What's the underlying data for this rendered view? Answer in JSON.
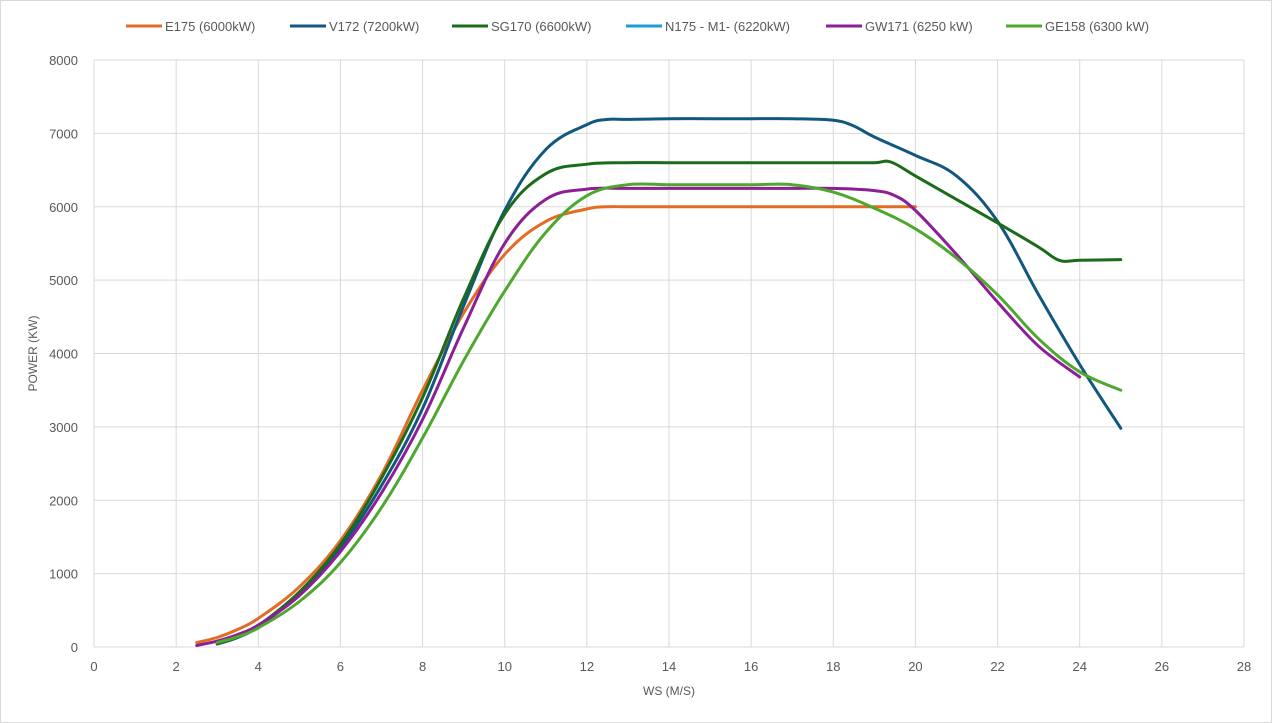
{
  "chart_data": {
    "type": "line",
    "title": "",
    "xlabel": "WS (M/S)",
    "ylabel": "POWER (KW)",
    "xlim": [
      0,
      28
    ],
    "ylim": [
      0,
      8000
    ],
    "xticks": [
      0,
      2,
      4,
      6,
      8,
      10,
      12,
      14,
      16,
      18,
      20,
      22,
      24,
      26,
      28
    ],
    "yticks": [
      0,
      1000,
      2000,
      3000,
      4000,
      5000,
      6000,
      7000,
      8000
    ],
    "grid": true,
    "legend_position": "top",
    "series": [
      {
        "name": "E175 (6000kW)",
        "color": "#e36c24",
        "points": [
          [
            2.5,
            60
          ],
          [
            3,
            130
          ],
          [
            3.5,
            240
          ],
          [
            4,
            390
          ],
          [
            5,
            820
          ],
          [
            6,
            1450
          ],
          [
            7,
            2350
          ],
          [
            8,
            3500
          ],
          [
            9,
            4550
          ],
          [
            10,
            5350
          ],
          [
            11,
            5800
          ],
          [
            12,
            5970
          ],
          [
            12.5,
            6000
          ],
          [
            13,
            6000
          ],
          [
            14,
            6000
          ],
          [
            15,
            6000
          ],
          [
            16,
            6000
          ],
          [
            17,
            6000
          ],
          [
            18,
            6000
          ],
          [
            19,
            6000
          ],
          [
            20,
            6000
          ]
        ]
      },
      {
        "name": "V172 (7200kW)",
        "color": "#12577e",
        "points": [
          [
            3,
            40
          ],
          [
            3.5,
            130
          ],
          [
            4,
            280
          ],
          [
            5,
            720
          ],
          [
            6,
            1350
          ],
          [
            7,
            2200
          ],
          [
            8,
            3250
          ],
          [
            9,
            4650
          ],
          [
            10,
            5950
          ],
          [
            11,
            6780
          ],
          [
            12,
            7120
          ],
          [
            12.5,
            7190
          ],
          [
            13,
            7190
          ],
          [
            14,
            7200
          ],
          [
            15,
            7200
          ],
          [
            16,
            7200
          ],
          [
            17,
            7200
          ],
          [
            18,
            7180
          ],
          [
            18.5,
            7100
          ],
          [
            19,
            6950
          ],
          [
            20,
            6700
          ],
          [
            21,
            6420
          ],
          [
            22,
            5800
          ],
          [
            23,
            4800
          ],
          [
            24,
            3850
          ],
          [
            25,
            2980
          ]
        ]
      },
      {
        "name": "SG170 (6600kW)",
        "color": "#1a6b1a",
        "points": [
          [
            3,
            50
          ],
          [
            3.5,
            140
          ],
          [
            4,
            290
          ],
          [
            5,
            750
          ],
          [
            6,
            1400
          ],
          [
            7,
            2300
          ],
          [
            8,
            3400
          ],
          [
            9,
            4750
          ],
          [
            10,
            5900
          ],
          [
            11,
            6450
          ],
          [
            12,
            6580
          ],
          [
            13,
            6600
          ],
          [
            14,
            6600
          ],
          [
            15,
            6600
          ],
          [
            16,
            6600
          ],
          [
            17,
            6600
          ],
          [
            18,
            6600
          ],
          [
            19,
            6600
          ],
          [
            19.4,
            6610
          ],
          [
            20,
            6420
          ],
          [
            21,
            6100
          ],
          [
            22,
            5780
          ],
          [
            23,
            5450
          ],
          [
            23.5,
            5270
          ],
          [
            24,
            5270
          ],
          [
            25,
            5280
          ]
        ]
      },
      {
        "name": "N175 - M1- (6220kW)",
        "color": "#1e9cd8",
        "points": []
      },
      {
        "name": "GW171 (6250 kW)",
        "color": "#8c1f96",
        "points": [
          [
            2.5,
            20
          ],
          [
            3,
            80
          ],
          [
            3.5,
            170
          ],
          [
            4,
            300
          ],
          [
            5,
            700
          ],
          [
            6,
            1300
          ],
          [
            7,
            2100
          ],
          [
            8,
            3100
          ],
          [
            9,
            4350
          ],
          [
            10,
            5500
          ],
          [
            11,
            6100
          ],
          [
            12,
            6240
          ],
          [
            13,
            6250
          ],
          [
            14,
            6250
          ],
          [
            15,
            6250
          ],
          [
            16,
            6250
          ],
          [
            17,
            6250
          ],
          [
            18,
            6250
          ],
          [
            19,
            6220
          ],
          [
            19.5,
            6150
          ],
          [
            20,
            5950
          ],
          [
            21,
            5350
          ],
          [
            22,
            4700
          ],
          [
            23,
            4100
          ],
          [
            24,
            3680
          ]
        ]
      },
      {
        "name": "GE158 (6300 kW)",
        "color": "#4ea72e",
        "points": [
          [
            3,
            60
          ],
          [
            3.5,
            140
          ],
          [
            4,
            260
          ],
          [
            5,
            620
          ],
          [
            6,
            1150
          ],
          [
            7,
            1900
          ],
          [
            8,
            2850
          ],
          [
            9,
            3900
          ],
          [
            10,
            4850
          ],
          [
            11,
            5650
          ],
          [
            12,
            6150
          ],
          [
            13,
            6300
          ],
          [
            14,
            6300
          ],
          [
            15,
            6300
          ],
          [
            16,
            6300
          ],
          [
            17,
            6300
          ],
          [
            18,
            6200
          ],
          [
            19,
            5980
          ],
          [
            20,
            5700
          ],
          [
            21,
            5300
          ],
          [
            22,
            4800
          ],
          [
            23,
            4200
          ],
          [
            24,
            3750
          ],
          [
            25,
            3500
          ]
        ]
      }
    ]
  }
}
